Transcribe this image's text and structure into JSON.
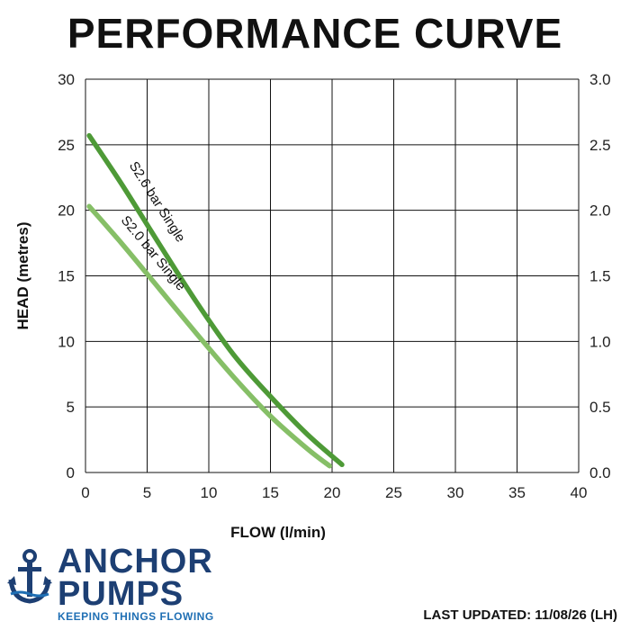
{
  "chart_data": {
    "type": "line",
    "title": "PERFORMANCE CURVE",
    "xlabel": "FLOW (l/min)",
    "ylabel": "HEAD (metres)",
    "xlim": [
      0,
      40
    ],
    "ylim": [
      0,
      30
    ],
    "y2lim": [
      0,
      3.0
    ],
    "x_ticks": [
      "0",
      "5",
      "10",
      "15",
      "20",
      "25",
      "30",
      "35",
      "40"
    ],
    "y_ticks": [
      "0",
      "5",
      "10",
      "15",
      "20",
      "25",
      "30"
    ],
    "y2_ticks": [
      "0.0",
      "0.5",
      "1.0",
      "1.5",
      "2.0",
      "2.5",
      "3.0"
    ],
    "grid": true,
    "series": [
      {
        "name": "S2.6 bar Single",
        "color": "#4e9a37",
        "x": [
          0.3,
          3,
          6,
          9,
          12,
          15,
          18,
          20.8
        ],
        "y": [
          25.7,
          21.9,
          17.4,
          13.0,
          9.0,
          5.8,
          2.9,
          0.6
        ]
      },
      {
        "name": "S2.0 bar Single",
        "color": "#86bf67",
        "x": [
          0.3,
          3,
          6,
          9,
          12,
          15,
          18,
          19.8
        ],
        "y": [
          20.3,
          17.4,
          14.0,
          10.6,
          7.3,
          4.3,
          1.8,
          0.5
        ]
      }
    ]
  },
  "footer": {
    "updated": "LAST UPDATED: 11/08/26 (LH)"
  },
  "logo": {
    "line1": "ANCHOR",
    "line2": "PUMPS",
    "tagline": "KEEPING THINGS FLOWING"
  }
}
